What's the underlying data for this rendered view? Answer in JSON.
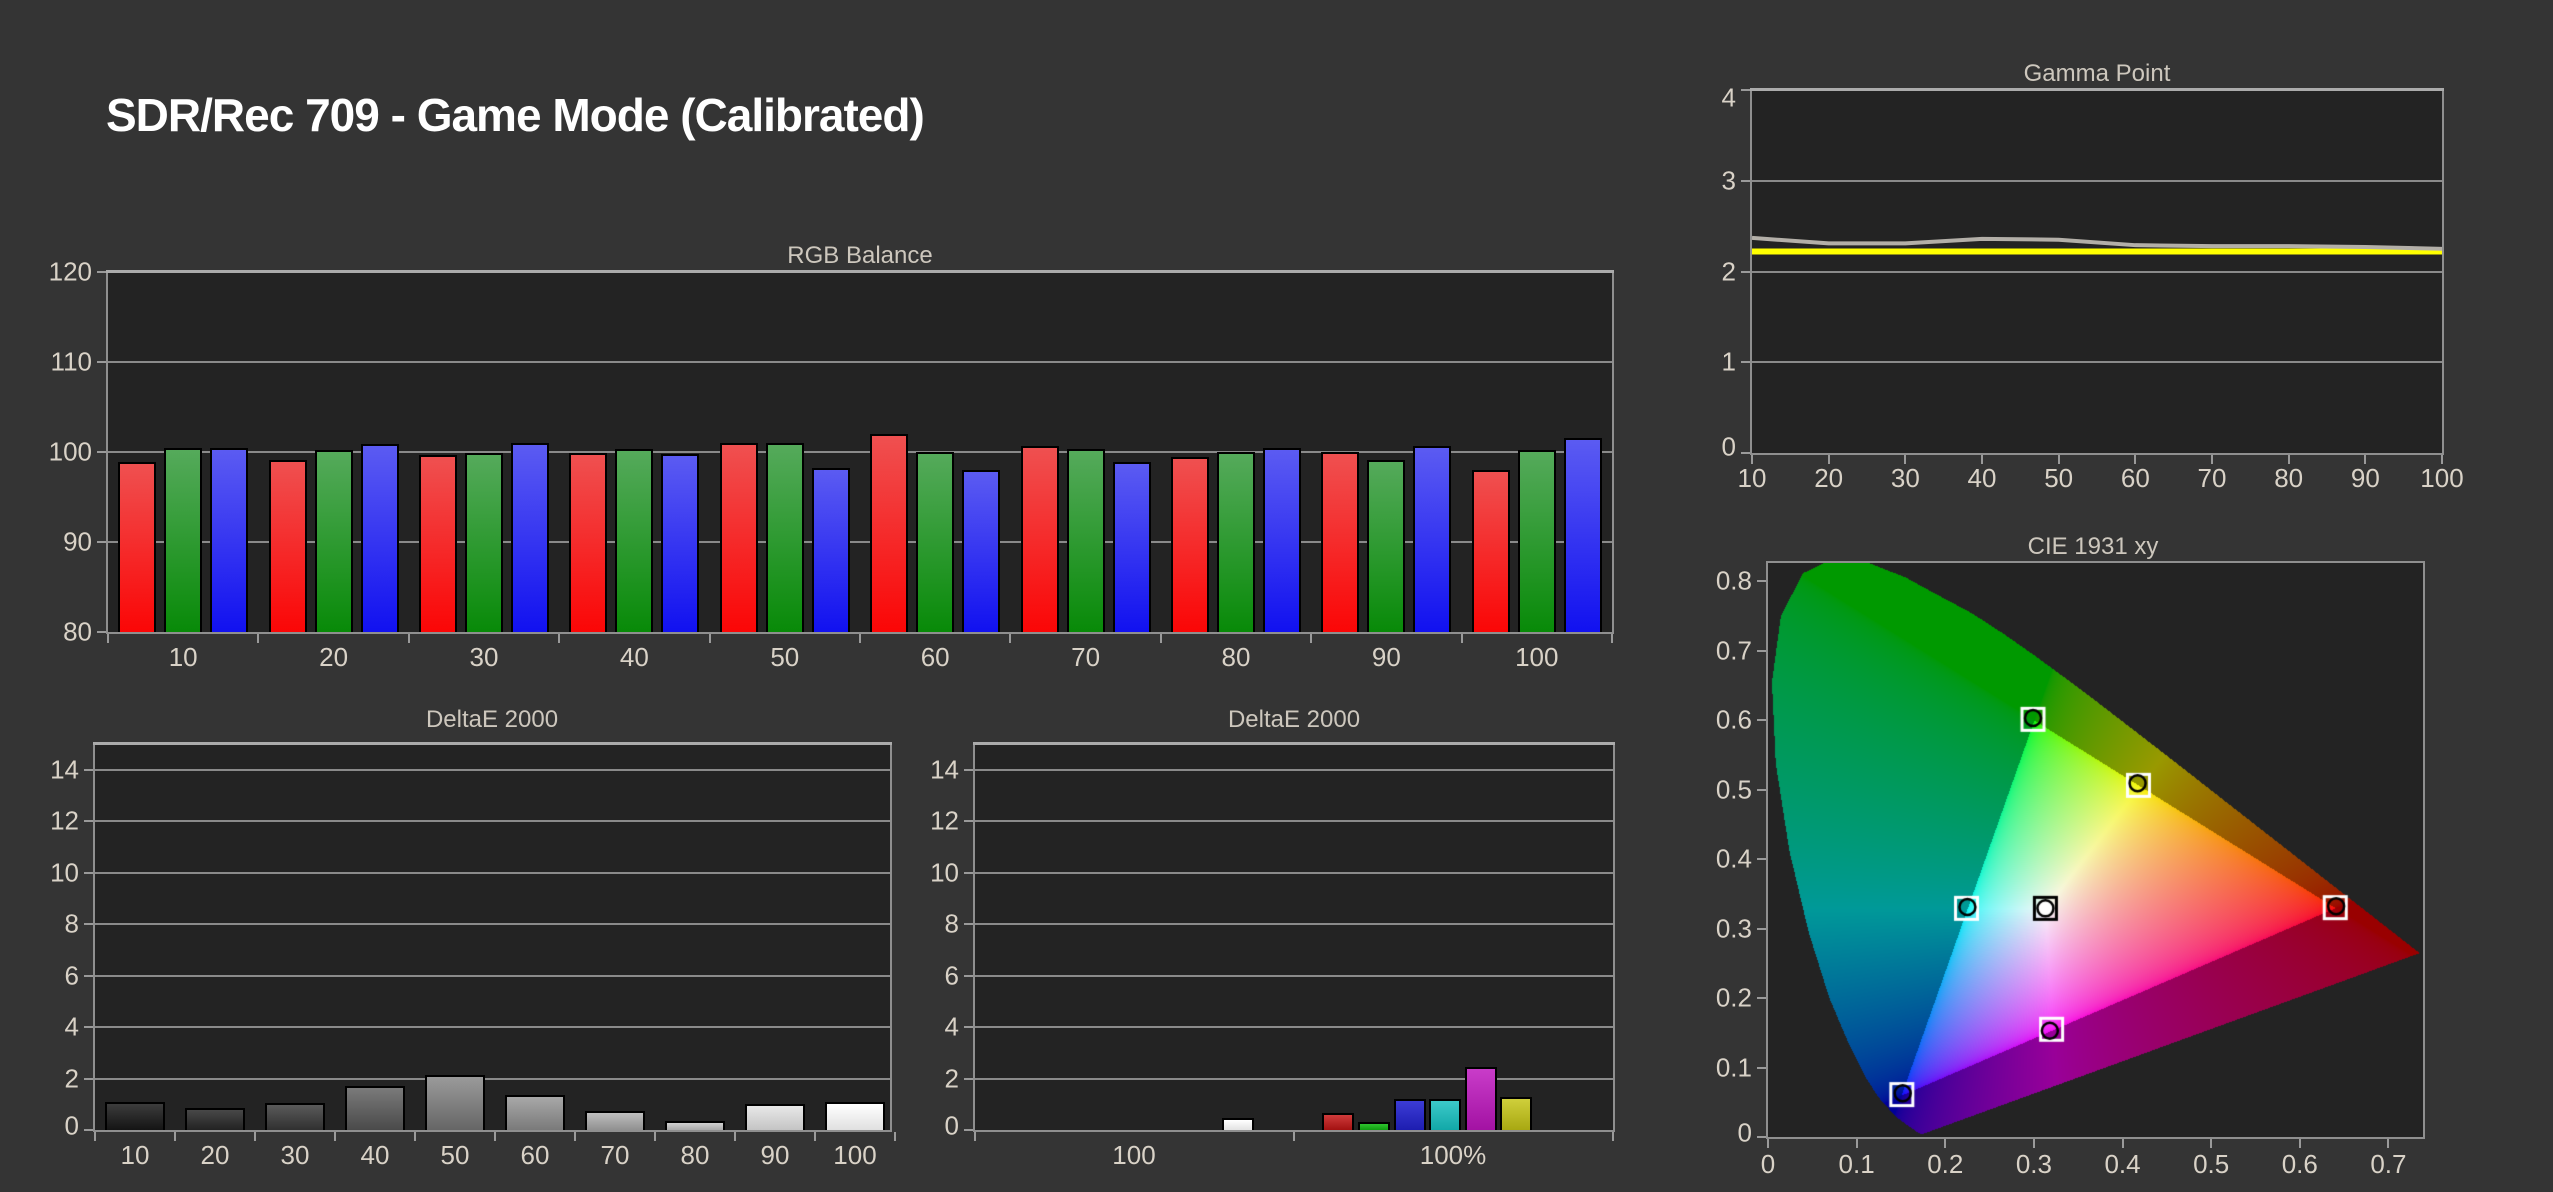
{
  "page": {
    "title": "SDR/Rec 709 - Game Mode (Calibrated)",
    "background": "#343434",
    "tick_text_color": "#d9d2c7",
    "title_text_color": "#ffffff"
  },
  "chart_data": [
    {
      "id": "rgb_balance",
      "type": "bar",
      "title": "RGB Balance",
      "categories": [
        "10",
        "20",
        "30",
        "40",
        "50",
        "60",
        "70",
        "80",
        "90",
        "100"
      ],
      "series": [
        {
          "name": "Red",
          "color_top": "#ef5050",
          "color_bottom": "#fb0606",
          "values": [
            98.9,
            99.1,
            99.7,
            99.9,
            101.0,
            102.0,
            100.7,
            99.4,
            100.0,
            98.0
          ]
        },
        {
          "name": "Green",
          "color_top": "#55aa5b",
          "color_bottom": "#088a08",
          "values": [
            100.5,
            100.2,
            99.9,
            100.3,
            101.0,
            100.0,
            100.3,
            100.0,
            99.1,
            100.2
          ]
        },
        {
          "name": "Blue",
          "color_top": "#5b5bf2",
          "color_bottom": "#1111f0",
          "values": [
            100.5,
            100.9,
            101.0,
            99.8,
            98.2,
            98.0,
            98.9,
            100.5,
            100.7,
            101.6
          ]
        }
      ],
      "ylim": [
        80,
        120
      ],
      "yticks": [
        "120",
        "110",
        "100",
        "90",
        "80"
      ],
      "grid": true,
      "legend": "none"
    },
    {
      "id": "gamma_point",
      "type": "line",
      "title": "Gamma Point",
      "x": [
        "10",
        "20",
        "30",
        "40",
        "50",
        "60",
        "70",
        "80",
        "90",
        "100"
      ],
      "series": [
        {
          "name": "measured-gamma",
          "color": "#b3afa8",
          "values": [
            2.37,
            2.31,
            2.31,
            2.36,
            2.35,
            2.29,
            2.28,
            2.28,
            2.27,
            2.25
          ]
        },
        {
          "name": "target-gamma",
          "color": "#ffff00",
          "values": [
            2.22,
            2.22,
            2.22,
            2.22,
            2.22,
            2.22,
            2.22,
            2.22,
            2.22,
            2.22
          ]
        }
      ],
      "ylim": [
        0,
        4
      ],
      "yticks": [
        "0",
        "1",
        "2",
        "3",
        "4"
      ],
      "grid": true,
      "legend": "none"
    },
    {
      "id": "deltae_grayscale",
      "type": "bar",
      "title": "DeltaE 2000",
      "categories": [
        "10",
        "20",
        "30",
        "40",
        "50",
        "60",
        "70",
        "80",
        "90",
        "100"
      ],
      "values": [
        1.1,
        0.85,
        1.05,
        1.7,
        2.15,
        1.35,
        0.75,
        0.35,
        1.0,
        1.1
      ],
      "bar_colors_top": [
        "#3c3c3c",
        "#484848",
        "#5a5a5a",
        "#7a7a7a",
        "#9a9a9a",
        "#a8a8a8",
        "#bebebe",
        "#d0d0d0",
        "#e8e8e8",
        "#ffffff"
      ],
      "bar_colors_bottom": [
        "#141414",
        "#222222",
        "#303030",
        "#4a4a4a",
        "#666666",
        "#7a7a7a",
        "#909090",
        "#a8a8a8",
        "#c4c4c4",
        "#e0e0e0"
      ],
      "ylim": [
        0,
        15
      ],
      "yticks": [
        "14",
        "12",
        "10",
        "8",
        "6",
        "4",
        "2",
        "0"
      ],
      "grid": true
    },
    {
      "id": "deltae_colors",
      "type": "bar",
      "title": "DeltaE 2000",
      "group_labels": [
        "100",
        "100%"
      ],
      "bars": [
        {
          "name": "white",
          "value": 0.45,
          "color_top": "#ffffff",
          "color_bottom": "#e2e2e2"
        },
        {
          "name": "red",
          "value": 0.65,
          "color_top": "#cf3b3b",
          "color_bottom": "#a31111"
        },
        {
          "name": "green",
          "value": 0.3,
          "color_top": "#2fc32f",
          "color_bottom": "#0f9d0f"
        },
        {
          "name": "blue",
          "value": 1.2,
          "color_top": "#3c3cd6",
          "color_bottom": "#1d1db0"
        },
        {
          "name": "cyan",
          "value": 1.2,
          "color_top": "#3cc9c9",
          "color_bottom": "#12a8a8"
        },
        {
          "name": "magenta",
          "value": 2.45,
          "color_top": "#c93cc9",
          "color_bottom": "#a312a3"
        },
        {
          "name": "yellow",
          "value": 1.3,
          "color_top": "#cfcf3b",
          "color_bottom": "#a8a812"
        }
      ],
      "ylim": [
        0,
        15
      ],
      "yticks": [
        "14",
        "12",
        "10",
        "8",
        "6",
        "4",
        "2",
        "0"
      ],
      "grid": true
    },
    {
      "id": "cie_1931_xy",
      "type": "scatter",
      "title": "CIE 1931 xy",
      "xticks": [
        "0",
        "0.1",
        "0.2",
        "0.3",
        "0.4",
        "0.5",
        "0.6",
        "0.7"
      ],
      "yticks": [
        "0",
        "0.1",
        "0.2",
        "0.3",
        "0.4",
        "0.5",
        "0.6",
        "0.7",
        "0.8"
      ],
      "xlim": [
        0,
        0.739
      ],
      "ylim": [
        0,
        0.826
      ],
      "gamut": "Rec 709",
      "gamut_triangle": [
        [
          0.64,
          0.33
        ],
        [
          0.3,
          0.6
        ],
        [
          0.15,
          0.06
        ]
      ],
      "points": [
        {
          "name": "white",
          "target": [
            0.313,
            0.329
          ],
          "measured": [
            0.313,
            0.329
          ],
          "square_stroke": "#000000",
          "circle_fill": "#ffffff"
        },
        {
          "name": "red",
          "target": [
            0.64,
            0.33
          ],
          "measured": [
            0.641,
            0.332
          ],
          "square_stroke": "#ffffff",
          "circle_fill": "none"
        },
        {
          "name": "green",
          "target": [
            0.299,
            0.601
          ],
          "measured": [
            0.299,
            0.603
          ],
          "square_stroke": "#ffffff",
          "circle_fill": "none"
        },
        {
          "name": "blue",
          "target": [
            0.151,
            0.061
          ],
          "measured": [
            0.152,
            0.063
          ],
          "square_stroke": "#ffffff",
          "circle_fill": "none"
        },
        {
          "name": "cyan",
          "target": [
            0.224,
            0.329
          ],
          "measured": [
            0.225,
            0.331
          ],
          "square_stroke": "#ffffff",
          "circle_fill": "none"
        },
        {
          "name": "magenta",
          "target": [
            0.32,
            0.155
          ],
          "measured": [
            0.318,
            0.153
          ],
          "square_stroke": "#ffffff",
          "circle_fill": "none"
        },
        {
          "name": "yellow",
          "target": [
            0.418,
            0.506
          ],
          "measured": [
            0.417,
            0.509
          ],
          "square_stroke": "#ffffff",
          "circle_fill": "none"
        }
      ]
    }
  ]
}
